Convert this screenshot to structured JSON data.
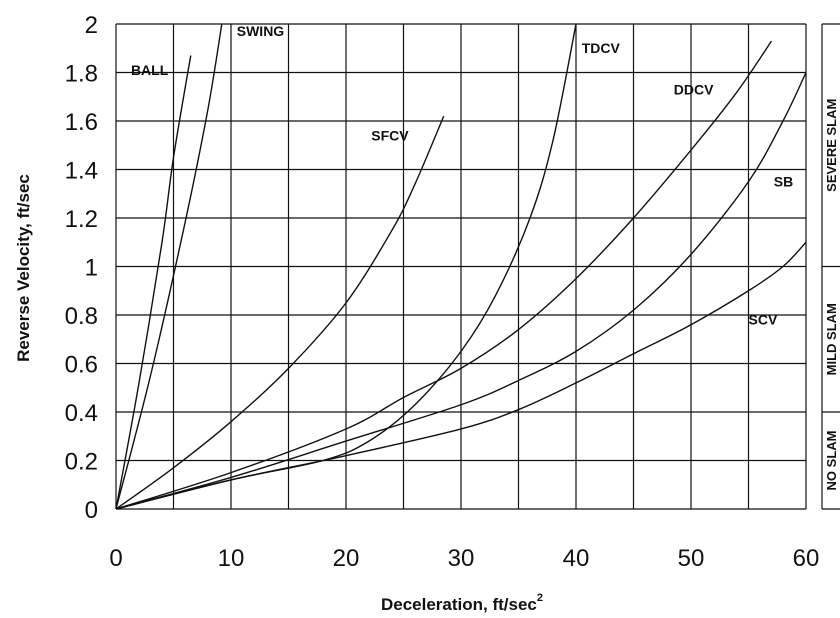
{
  "chart_data": {
    "type": "line",
    "xlabel": "Deceleration, ft/sec",
    "xlabel_superscript": "2",
    "ylabel": "Reverse Velocity, ft/sec",
    "xlim": [
      0,
      60
    ],
    "ylim": [
      0,
      2
    ],
    "x_ticks": [
      "0",
      "10",
      "20",
      "30",
      "40",
      "50",
      "60"
    ],
    "y_ticks": [
      "0",
      "0.2",
      "0.4",
      "0.6",
      "0.8",
      "1",
      "1.2",
      "1.4",
      "1.6",
      "1.8",
      "2"
    ],
    "grid_x_step": 5,
    "grid_y_step": 0.2,
    "grid": true,
    "series": [
      {
        "name": "BALL",
        "x": [
          0,
          2,
          4,
          5,
          6.5
        ],
        "y": [
          0,
          0.52,
          1.1,
          1.45,
          1.87
        ]
      },
      {
        "name": "SWING",
        "x": [
          0,
          3,
          6,
          8,
          9.2
        ],
        "y": [
          0,
          0.55,
          1.18,
          1.65,
          2.0
        ]
      },
      {
        "name": "SFCV",
        "x": [
          0,
          5,
          10,
          15,
          20,
          24,
          26,
          28.5
        ],
        "y": [
          0,
          0.17,
          0.36,
          0.58,
          0.85,
          1.15,
          1.34,
          1.62
        ]
      },
      {
        "name": "TDCV",
        "x": [
          0,
          10,
          18,
          22,
          26,
          30,
          33,
          36,
          38,
          40
        ],
        "y": [
          0,
          0.12,
          0.2,
          0.28,
          0.43,
          0.65,
          0.88,
          1.2,
          1.52,
          2.0
        ]
      },
      {
        "name": "DDCV",
        "x": [
          0,
          10,
          20,
          25,
          30,
          35,
          40,
          45,
          50,
          54,
          57
        ],
        "y": [
          0,
          0.15,
          0.33,
          0.46,
          0.58,
          0.74,
          0.95,
          1.2,
          1.48,
          1.72,
          1.93
        ]
      },
      {
        "name": "SB",
        "x": [
          0,
          10,
          20,
          30,
          35,
          40,
          45,
          50,
          55,
          58,
          60
        ],
        "y": [
          0,
          0.13,
          0.28,
          0.43,
          0.53,
          0.65,
          0.82,
          1.05,
          1.35,
          1.6,
          1.8
        ]
      },
      {
        "name": "SCV",
        "x": [
          0,
          10,
          20,
          30,
          35,
          40,
          45,
          50,
          55,
          58,
          60
        ],
        "y": [
          0,
          0.12,
          0.22,
          0.33,
          0.41,
          0.52,
          0.64,
          0.76,
          0.9,
          1.0,
          1.1
        ]
      }
    ],
    "series_labels": [
      {
        "name": "BALL",
        "x": 1.3,
        "y": 1.79
      },
      {
        "name": "SWING",
        "x": 10.5,
        "y": 1.95
      },
      {
        "name": "SFCV",
        "x": 22.2,
        "y": 1.52
      },
      {
        "name": "TDCV",
        "x": 40.5,
        "y": 1.88
      },
      {
        "name": "DDCV",
        "x": 48.5,
        "y": 1.71
      },
      {
        "name": "SB",
        "x": 57.2,
        "y": 1.33
      },
      {
        "name": "SCV",
        "x": 55.0,
        "y": 0.76
      }
    ],
    "bands": [
      {
        "label": "NO SLAM",
        "y0": 0,
        "y1": 0.4
      },
      {
        "label": "MILD SLAM",
        "y0": 0.4,
        "y1": 1.0
      },
      {
        "label": "SEVERE SLAM",
        "y0": 1.0,
        "y1": 2.0
      }
    ]
  }
}
